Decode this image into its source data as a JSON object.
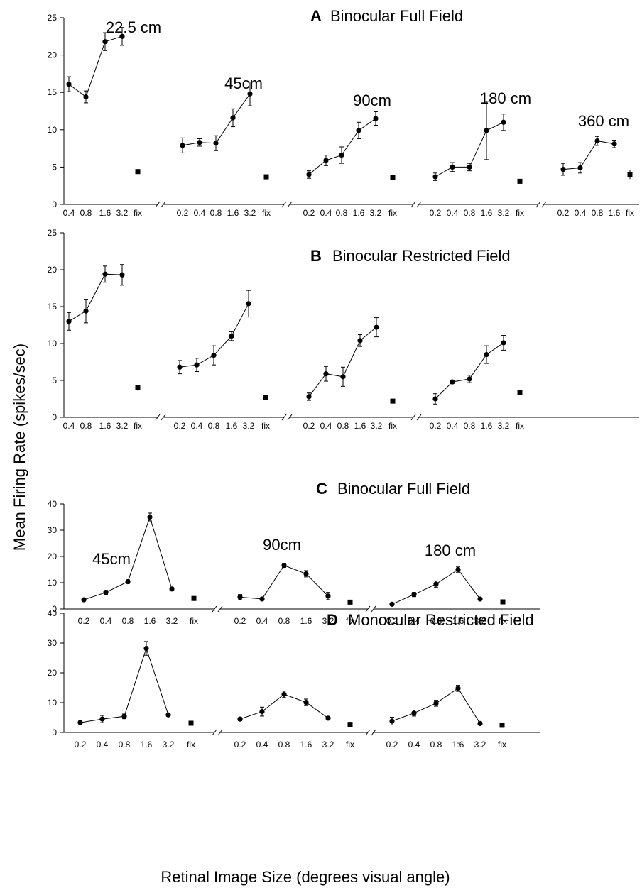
{
  "figure": {
    "ylabel": "Mean Firing Rate (spikes/sec)",
    "xlabel": "Retinal Image Size (degrees visual angle)"
  },
  "chart_data": [
    {
      "type": "line",
      "panel": "A",
      "title": "Binocular Full Field",
      "ylim": [
        0,
        25
      ],
      "yticks": [
        0,
        5,
        10,
        15,
        20,
        25
      ],
      "groups": [
        {
          "label": "22.5 cm",
          "x": [
            "0.4",
            "0.8",
            "1.6",
            "3.2"
          ],
          "y": [
            16.1,
            14.4,
            21.8,
            22.5
          ],
          "err": [
            1.0,
            0.8,
            1.2,
            1.2
          ],
          "fix": 4.4,
          "fix_err": 0.2
        },
        {
          "label": "45cm",
          "x": [
            "0.2",
            "0.4",
            "0.8",
            "1.6",
            "3.2"
          ],
          "y": [
            7.9,
            8.3,
            8.2,
            11.6,
            14.8
          ],
          "err": [
            1.0,
            0.5,
            1.0,
            1.2,
            1.6
          ],
          "fix": 3.7,
          "fix_err": 0.3
        },
        {
          "label": "90cm",
          "x": [
            "0.2",
            "0.4",
            "0.8",
            "1.6",
            "3.2"
          ],
          "y": [
            4.0,
            5.9,
            6.6,
            9.9,
            11.5
          ],
          "err": [
            0.5,
            0.7,
            1.1,
            1.1,
            0.9
          ],
          "fix": 3.6,
          "fix_err": 0.2
        },
        {
          "label": "180 cm",
          "x": [
            "0.2",
            "0.4",
            "0.8",
            "1.6",
            "3.2"
          ],
          "y": [
            3.7,
            5.0,
            5.0,
            9.9,
            11.0
          ],
          "err": [
            0.5,
            0.6,
            0.5,
            3.9,
            1.1
          ],
          "fix": 3.1,
          "fix_err": 0.2
        },
        {
          "label": "360 cm",
          "x": [
            "0.2",
            "0.4",
            "0.8",
            "1.6"
          ],
          "y": [
            4.7,
            4.9,
            8.5,
            8.1
          ],
          "err": [
            0.8,
            0.7,
            0.6,
            0.5
          ],
          "fix": 4.0,
          "fix_err": 0.6
        }
      ]
    },
    {
      "type": "line",
      "panel": "B",
      "title": "Binocular Restricted Field",
      "ylim": [
        0,
        25
      ],
      "yticks": [
        0,
        5,
        10,
        15,
        20,
        25
      ],
      "groups": [
        {
          "label": "",
          "x": [
            "0.4",
            "0.8",
            "1.6",
            "3.2"
          ],
          "y": [
            13.0,
            14.4,
            19.4,
            19.3
          ],
          "err": [
            1.2,
            1.6,
            1.1,
            1.4
          ],
          "fix": 4.0,
          "fix_err": 0.4
        },
        {
          "label": "",
          "x": [
            "0.2",
            "0.4",
            "0.8",
            "1.6",
            "3.2"
          ],
          "y": [
            6.8,
            7.1,
            8.4,
            11.0,
            15.4
          ],
          "err": [
            0.9,
            0.9,
            1.3,
            0.6,
            1.8
          ],
          "fix": 2.7,
          "fix_err": 0.2
        },
        {
          "label": "",
          "x": [
            "0.2",
            "0.4",
            "0.8",
            "1.6",
            "3.2"
          ],
          "y": [
            2.8,
            5.9,
            5.5,
            10.4,
            12.2
          ],
          "err": [
            0.5,
            1.0,
            1.3,
            0.8,
            1.3
          ],
          "fix": 2.2,
          "fix_err": 0.2
        },
        {
          "label": "",
          "x": [
            "0.2",
            "0.4",
            "0.8",
            "1.6",
            "3.2"
          ],
          "y": [
            2.5,
            4.8,
            5.2,
            8.5,
            10.1
          ],
          "err": [
            0.7,
            0.2,
            0.5,
            1.2,
            1.0
          ],
          "fix": 3.4,
          "fix_err": 0.2
        }
      ]
    },
    {
      "type": "line",
      "panel": "C",
      "title": "Binocular Full Field",
      "ylim": [
        0,
        40
      ],
      "yticks": [
        0,
        10,
        20,
        30,
        40
      ],
      "groups": [
        {
          "label": "45cm",
          "x": [
            "0.2",
            "0.4",
            "0.8",
            "1.6",
            "3.2"
          ],
          "y": [
            3.5,
            6.3,
            10.4,
            35.0,
            7.6
          ],
          "err": [
            0.3,
            0.8,
            0.7,
            1.5,
            0.6
          ],
          "fix": 4.0,
          "fix_err": 0.3
        },
        {
          "label": "90cm",
          "x": [
            "0.2",
            "0.4",
            "0.8",
            "1.6",
            "3.2"
          ],
          "y": [
            4.5,
            3.8,
            16.6,
            13.4,
            4.9
          ],
          "err": [
            1.0,
            0.3,
            0.8,
            1.2,
            1.4
          ],
          "fix": 2.6,
          "fix_err": 0.3
        },
        {
          "label": "180 cm",
          "x": [
            "0.2",
            "0.4",
            "0.8",
            "1.6",
            "3.2"
          ],
          "y": [
            1.8,
            5.5,
            9.5,
            15.0,
            3.8
          ],
          "err": [
            0.2,
            0.8,
            1.2,
            1.0,
            0.3
          ],
          "fix": 2.7,
          "fix_err": 0.3
        }
      ]
    },
    {
      "type": "line",
      "panel": "D",
      "title": "Monocular Restricted Field",
      "ylim": [
        0,
        40
      ],
      "yticks": [
        0,
        10,
        20,
        30,
        40
      ],
      "groups": [
        {
          "label": "",
          "x": [
            "0.2",
            "0.4",
            "0.8",
            "1.6",
            "3.2"
          ],
          "y": [
            3.3,
            4.5,
            5.4,
            28.2,
            5.9
          ],
          "err": [
            0.8,
            1.2,
            0.8,
            2.3,
            0.5
          ],
          "fix": 3.1,
          "fix_err": 0.3
        },
        {
          "label": "",
          "x": [
            "0.2",
            "0.4",
            "0.8",
            "1.6",
            "3.2"
          ],
          "y": [
            4.5,
            7.0,
            12.8,
            10.1,
            4.8
          ],
          "err": [
            0.5,
            1.5,
            1.1,
            1.1,
            0.5
          ],
          "fix": 2.7,
          "fix_err": 0.8
        },
        {
          "label": "",
          "x": [
            "0.2",
            "0.4",
            "0.8",
            "1:6",
            "3.2"
          ],
          "y": [
            3.8,
            6.5,
            9.8,
            14.8,
            3.0
          ],
          "err": [
            1.3,
            1.0,
            1.0,
            1.0,
            0.5
          ],
          "fix": 2.4,
          "fix_err": 0.3
        }
      ]
    }
  ]
}
